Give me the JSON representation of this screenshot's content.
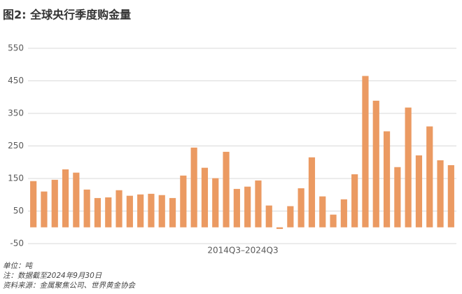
{
  "chart_data": {
    "type": "bar",
    "title": "图2: 全球央行季度购金量",
    "x_label": "2014Q3–2024Q3",
    "notes": [
      "单位：吨",
      "注：数据截至2024年9月30日",
      "资料来源：金属聚焦公司、世界黄金协会"
    ],
    "categories": [
      null,
      null,
      null,
      null,
      null,
      null,
      null,
      null,
      null,
      null,
      null,
      null,
      null,
      null,
      null,
      null,
      null,
      null,
      null,
      null,
      null,
      null,
      null,
      null,
      null,
      null,
      null,
      null,
      null,
      null,
      null,
      null,
      null,
      null,
      null,
      null,
      null,
      null,
      null,
      null
    ],
    "values": [
      142,
      110,
      146,
      178,
      168,
      116,
      90,
      92,
      114,
      97,
      101,
      103,
      99,
      90,
      159,
      245,
      183,
      151,
      232,
      118,
      125,
      144,
      67,
      -5,
      65,
      120,
      215,
      95,
      39,
      86,
      163,
      465,
      389,
      295,
      185,
      368,
      221,
      310,
      206,
      191
    ],
    "color": "#eb9a62",
    "ylim": [
      -50,
      550
    ],
    "yticks": [
      -50,
      50,
      150,
      250,
      350,
      450,
      550
    ],
    "grid": true
  }
}
